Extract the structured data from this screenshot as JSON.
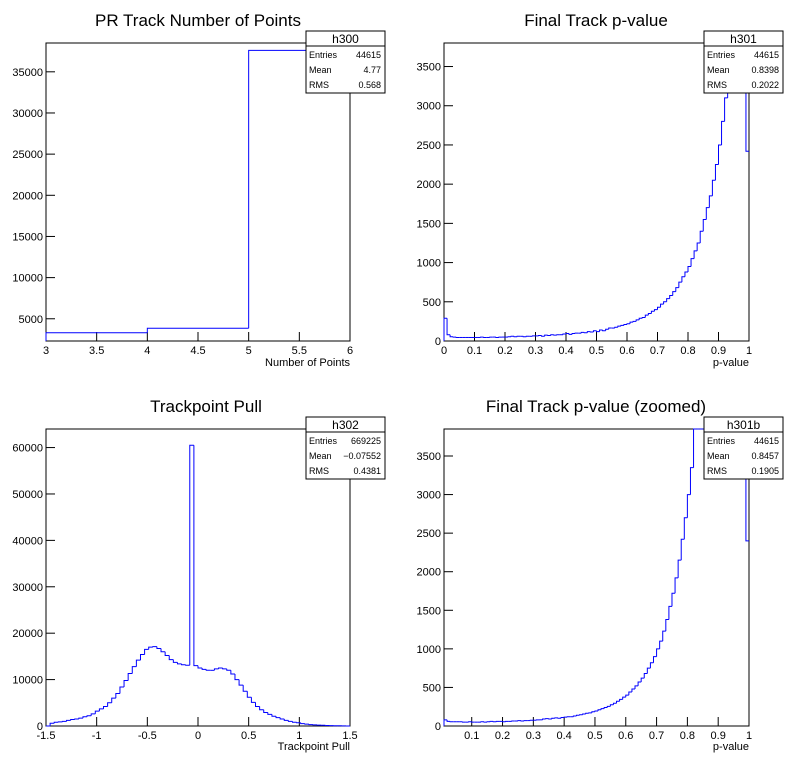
{
  "chart_data": [
    {
      "type": "histogram",
      "title": "PR Track Number of Points",
      "xlabel": "Number of Points",
      "ylabel": "",
      "xlim": [
        3,
        6
      ],
      "ylim": [
        2300,
        38500
      ],
      "x_ticks": [
        "3",
        "3.5",
        "4",
        "4.5",
        "5",
        "5.5",
        "6"
      ],
      "y_ticks": [
        "5000",
        "10000",
        "15000",
        "20000",
        "25000",
        "30000",
        "35000"
      ],
      "bin_edges": [
        3,
        4,
        5,
        6
      ],
      "values": [
        3300,
        3850,
        37600
      ],
      "color": "#0000ff",
      "stats": {
        "name": "h300",
        "rows": [
          {
            "label": "Entries",
            "value": "44615"
          },
          {
            "label": "Mean",
            "value": "4.77"
          },
          {
            "label": "RMS",
            "value": "0.568"
          }
        ]
      }
    },
    {
      "type": "histogram",
      "title": "Final Track p-value",
      "xlabel": "p-value",
      "ylabel": "",
      "xlim": [
        0,
        1
      ],
      "ylim": [
        0,
        3800
      ],
      "x_ticks": [
        "0",
        "0.1",
        "0.2",
        "0.3",
        "0.4",
        "0.5",
        "0.6",
        "0.7",
        "0.8",
        "0.9",
        "1"
      ],
      "y_ticks": [
        "0",
        "500",
        "1000",
        "1500",
        "2000",
        "2500",
        "3000",
        "3500"
      ],
      "bin_edges_range": [
        0,
        1
      ],
      "values": [
        290,
        80,
        55,
        50,
        45,
        45,
        45,
        45,
        45,
        45,
        45,
        45,
        50,
        45,
        45,
        50,
        50,
        45,
        50,
        50,
        50,
        55,
        60,
        55,
        60,
        60,
        55,
        60,
        60,
        65,
        65,
        70,
        60,
        75,
        70,
        80,
        75,
        80,
        80,
        90,
        95,
        85,
        95,
        100,
        100,
        110,
        105,
        120,
        115,
        130,
        120,
        140,
        130,
        150,
        165,
        165,
        175,
        190,
        200,
        210,
        220,
        240,
        250,
        270,
        290,
        300,
        330,
        350,
        380,
        400,
        430,
        470,
        500,
        540,
        580,
        630,
        680,
        750,
        820,
        880,
        950,
        1050,
        1150,
        1250,
        1400,
        1550,
        1700,
        1850,
        2050,
        2250,
        2500,
        2800,
        3100,
        3400,
        3800,
        3800,
        3800,
        3800,
        3800,
        2420
      ],
      "color": "#0000ff",
      "stats": {
        "name": "h301",
        "rows": [
          {
            "label": "Entries",
            "value": "44615"
          },
          {
            "label": "Mean",
            "value": "0.8398"
          },
          {
            "label": "RMS",
            "value": "0.2022"
          }
        ]
      }
    },
    {
      "type": "histogram",
      "title": "Trackpoint Pull",
      "xlabel": "Trackpoint Pull",
      "ylabel": "",
      "xlim": [
        -1.5,
        1.5
      ],
      "ylim": [
        0,
        64000
      ],
      "x_ticks": [
        "-1.5",
        "-1",
        "-0.5",
        "0",
        "0.5",
        "1",
        "1.5"
      ],
      "y_ticks": [
        "0",
        "10000",
        "20000",
        "30000",
        "40000",
        "50000",
        "60000"
      ],
      "bin_edges_range": [
        -1.5,
        1.5
      ],
      "values": [
        0,
        600,
        800,
        900,
        1000,
        1200,
        1400,
        1500,
        1700,
        2000,
        2200,
        2600,
        3200,
        3700,
        4200,
        5000,
        6000,
        7000,
        8400,
        9800,
        11300,
        12800,
        14200,
        15400,
        16500,
        17000,
        17100,
        16700,
        16000,
        15200,
        14300,
        13700,
        13400,
        13200,
        13100,
        60500,
        13000,
        12500,
        12200,
        12000,
        12000,
        12300,
        12500,
        12300,
        12000,
        11200,
        10000,
        8800,
        7500,
        6200,
        5100,
        4200,
        3500,
        2900,
        2500,
        2100,
        1800,
        1500,
        1200,
        1000,
        800,
        700,
        500,
        400,
        300,
        250,
        200,
        150,
        100,
        80,
        60,
        40,
        20,
        0
      ],
      "color": "#0000ff",
      "stats": {
        "name": "h302",
        "rows": [
          {
            "label": "Entries",
            "value": "669225"
          },
          {
            "label": "Mean",
            "value": "−0.07552"
          },
          {
            "label": "RMS",
            "value": "0.4381"
          }
        ]
      }
    },
    {
      "type": "histogram",
      "title": "Final Track p-value (zoomed)",
      "xlabel": "p-value",
      "ylabel": "",
      "xlim": [
        0.01,
        1
      ],
      "ylim": [
        0,
        3850
      ],
      "x_ticks": [
        "0.1",
        "0.2",
        "0.3",
        "0.4",
        "0.5",
        "0.6",
        "0.7",
        "0.8",
        "0.9",
        "1"
      ],
      "y_ticks": [
        "0",
        "500",
        "1000",
        "1500",
        "2000",
        "2500",
        "3000",
        "3500"
      ],
      "bin_edges_range": [
        0.01,
        1
      ],
      "values": [
        80,
        60,
        55,
        55,
        55,
        55,
        50,
        50,
        55,
        50,
        50,
        50,
        55,
        50,
        55,
        60,
        55,
        60,
        60,
        55,
        60,
        60,
        65,
        65,
        70,
        65,
        70,
        70,
        75,
        75,
        80,
        80,
        90,
        95,
        90,
        100,
        105,
        100,
        110,
        115,
        120,
        120,
        130,
        140,
        145,
        155,
        165,
        170,
        185,
        195,
        210,
        225,
        240,
        255,
        275,
        295,
        320,
        345,
        375,
        400,
        440,
        480,
        520,
        570,
        620,
        680,
        750,
        820,
        900,
        1000,
        1100,
        1230,
        1380,
        1550,
        1720,
        1920,
        2150,
        2420,
        2700,
        3000,
        3350,
        3850,
        3850,
        3850,
        3850,
        3850,
        3850,
        3850,
        3850,
        3850,
        3850,
        3850,
        3850,
        3850,
        3850,
        3850,
        3850,
        3850,
        2400
      ],
      "color": "#0000ff",
      "stats": {
        "name": "h301b",
        "rows": [
          {
            "label": "Entries",
            "value": "44615"
          },
          {
            "label": "Mean",
            "value": "0.8457"
          },
          {
            "label": "RMS",
            "value": "0.1905"
          }
        ]
      }
    }
  ]
}
